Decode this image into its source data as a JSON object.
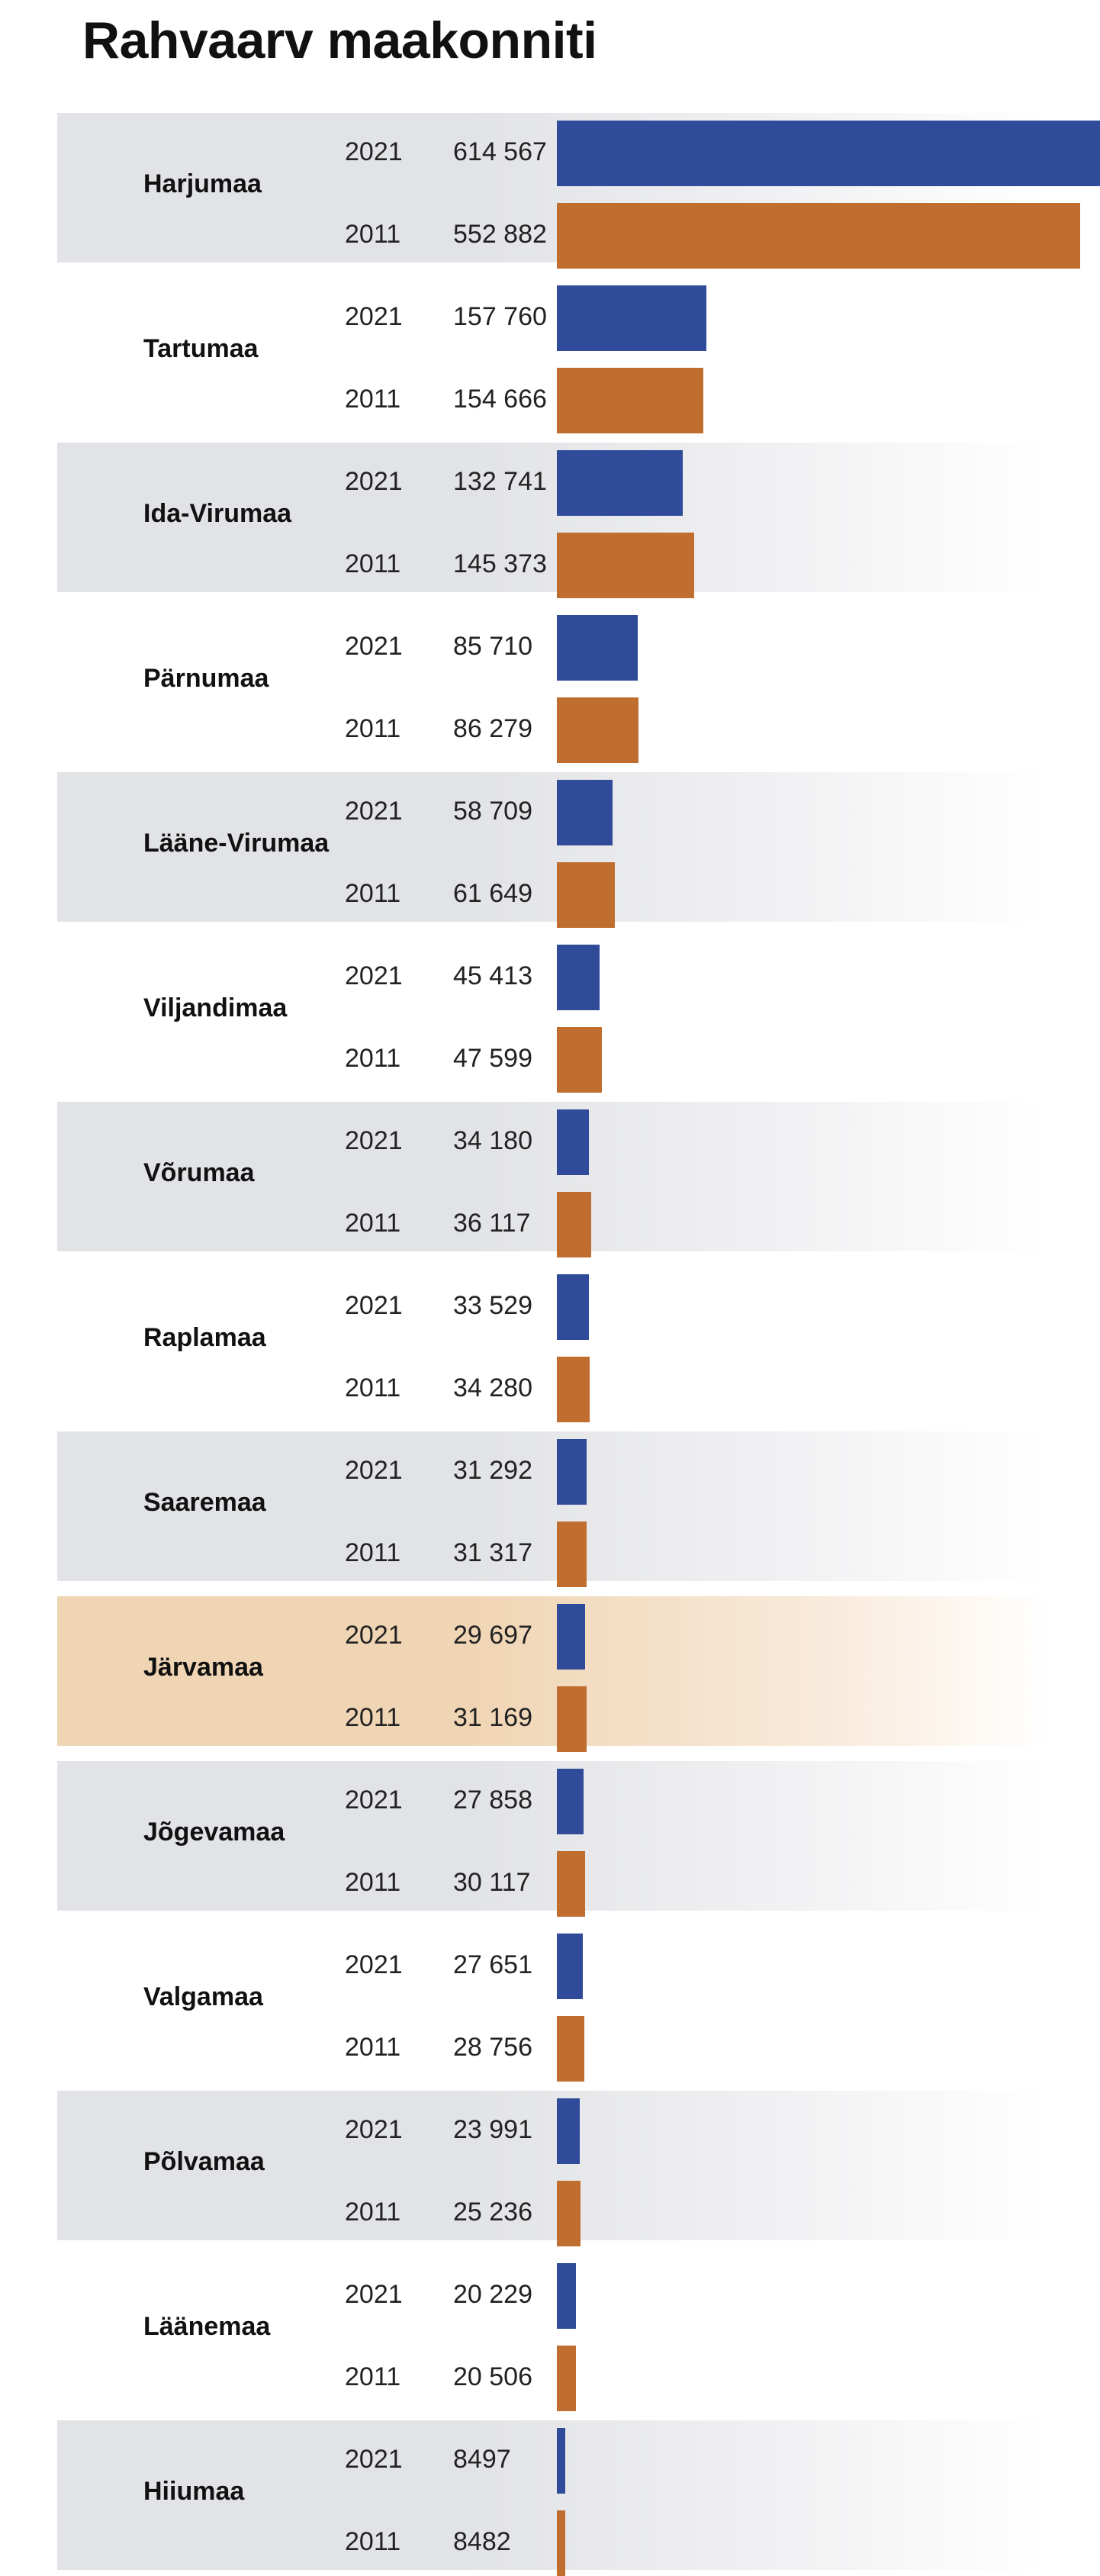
{
  "title": "Rahvaarv maakonniti",
  "colors": {
    "y2021": "#2f4b99",
    "y2011": "#c06e2f",
    "row_shade": "#e2e3e6",
    "row_highlight": "#f0d5b4"
  },
  "chart_data": {
    "type": "bar",
    "orientation": "horizontal",
    "title": "Rahvaarv maakonniti",
    "categories": [
      "Harjumaa",
      "Tartumaa",
      "Ida-Virumaa",
      "Pärnumaa",
      "Lääne-Virumaa",
      "Viljandimaa",
      "Võrumaa",
      "Raplamaa",
      "Saaremaa",
      "Järvamaa",
      "Jõgevamaa",
      "Valgamaa",
      "Põlvamaa",
      "Läänemaa",
      "Hiiumaa"
    ],
    "series": [
      {
        "name": "2021",
        "color": "#2f4b99",
        "values": [
          614567,
          157760,
          132741,
          85710,
          58709,
          45413,
          34180,
          33529,
          31292,
          29697,
          27858,
          27651,
          23991,
          20229,
          8497
        ],
        "labels": [
          "614 567",
          "157 760",
          "132 741",
          "85 710",
          "58 709",
          "45 413",
          "34 180",
          "33 529",
          "31 292",
          "29 697",
          "27 858",
          "27 651",
          "23 991",
          "20 229",
          "8497"
        ]
      },
      {
        "name": "2011",
        "color": "#c06e2f",
        "values": [
          552882,
          154666,
          145373,
          86279,
          61649,
          47599,
          36117,
          34280,
          31317,
          31169,
          30117,
          28756,
          25236,
          20506,
          8482
        ],
        "labels": [
          "552 882",
          "154 666",
          "145 373",
          "86 279",
          "61 649",
          "47 599",
          "36 117",
          "34 280",
          "31 317",
          "31 169",
          "30 117",
          "28 756",
          "25 236",
          "20 506",
          "8482"
        ]
      }
    ],
    "xlim": [
      0,
      614567
    ],
    "grid": false,
    "legend": "none",
    "highlight_category": "Järvamaa"
  }
}
